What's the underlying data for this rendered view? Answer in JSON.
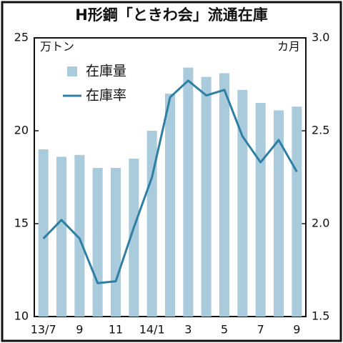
{
  "chart_data": {
    "type": "bar-line",
    "title": "H形鋼「ときわ会」流通在庫",
    "y_unit": "万トン",
    "y2_unit": "カ月",
    "categories": [
      "13/7",
      null,
      "9",
      null,
      "11",
      null,
      "14/1",
      null,
      "3",
      null,
      "5",
      null,
      "7",
      null,
      "9"
    ],
    "series": [
      {
        "name": "在庫量",
        "type": "bar",
        "color": "#a9cbdc",
        "values": [
          19.0,
          18.6,
          18.7,
          18.0,
          18.0,
          18.5,
          20.0,
          22.0,
          23.4,
          22.9,
          23.1,
          22.2,
          21.5,
          21.1,
          21.3
        ]
      },
      {
        "name": "在庫率",
        "type": "line",
        "axis": "y2",
        "color": "#2f7fa5",
        "values": [
          1.92,
          2.02,
          1.92,
          1.68,
          1.69,
          1.98,
          2.25,
          2.68,
          2.77,
          2.69,
          2.72,
          2.47,
          2.33,
          2.45,
          2.28
        ]
      }
    ],
    "ylim": [
      10,
      25
    ],
    "yticks": [
      10,
      15,
      20,
      25
    ],
    "y2lim": [
      1.5,
      3.0
    ],
    "y2ticks": [
      1.5,
      {
        "value": 2,
        "label": "2.0"
      },
      {
        "value": 2.5,
        "label": "2.5"
      },
      {
        "value": 3,
        "label": "3.0"
      }
    ]
  }
}
